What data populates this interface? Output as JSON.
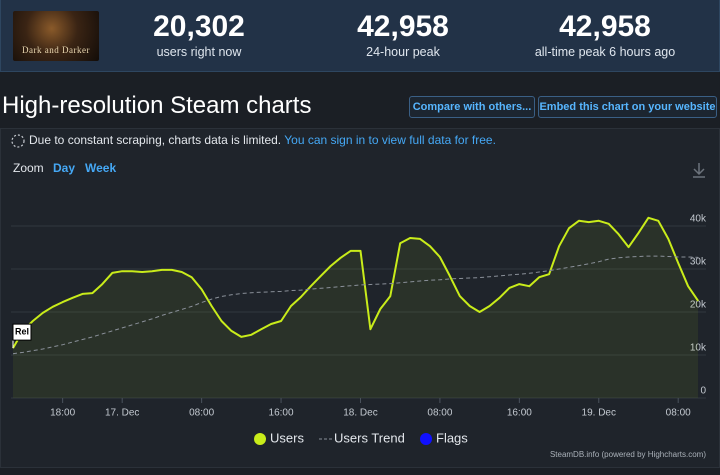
{
  "header": {
    "game_logo": "Dark and Darker",
    "stats": [
      {
        "value": "20,302",
        "label": "users right now"
      },
      {
        "value": "42,958",
        "label": "24-hour peak"
      },
      {
        "value": "42,958",
        "label": "all-time peak 6 hours ago"
      }
    ]
  },
  "title": "High-resolution Steam charts",
  "buttons": [
    "Compare with others...",
    "Embed this chart on your website"
  ],
  "notice": {
    "text": "Due to constant scraping, charts data is limited.",
    "link": "You can sign in to view full data for free."
  },
  "zoom": {
    "label": "Zoom",
    "options": [
      "Day",
      "Week"
    ]
  },
  "chart_data": {
    "type": "line",
    "x": [
      13,
      14,
      15,
      16,
      17,
      18,
      19,
      20,
      21,
      22,
      23,
      24,
      25,
      26,
      27,
      28,
      29,
      30,
      31,
      32,
      33,
      34,
      35,
      36,
      37,
      38,
      39,
      40,
      41,
      42,
      43,
      44,
      45,
      46,
      47,
      48,
      49,
      50,
      51,
      52,
      53,
      54,
      55,
      56,
      57,
      58,
      59,
      60,
      61,
      62,
      63,
      64,
      65,
      66,
      67,
      68,
      69,
      70,
      71,
      72,
      73,
      74,
      75,
      76,
      77,
      78,
      79,
      80,
      81,
      82
    ],
    "series": [
      {
        "name": "Users",
        "color": "#c9ec1a",
        "dashed": false,
        "values": [
          11600,
          15600,
          17900,
          19800,
          21200,
          22300,
          23300,
          24200,
          24400,
          26500,
          29100,
          29500,
          29500,
          29300,
          29500,
          29800,
          29800,
          29300,
          28100,
          25300,
          21400,
          17900,
          15600,
          14200,
          14700,
          16000,
          17200,
          17900,
          21400,
          23500,
          26000,
          28400,
          30700,
          32600,
          34200,
          34200,
          16000,
          20700,
          23700,
          36000,
          37200,
          37000,
          35300,
          32800,
          28400,
          23700,
          21400,
          20000,
          21400,
          23300,
          25600,
          26500,
          26000,
          28100,
          28800,
          35300,
          39500,
          41200,
          40900,
          41200,
          40500,
          38100,
          35100,
          38400,
          41900,
          41200,
          37000,
          31400,
          26000,
          22600
        ]
      },
      {
        "name": "Users Trend",
        "color": "#8a9099",
        "dashed": true,
        "values": [
          10300,
          10600,
          11000,
          11400,
          11900,
          12400,
          13000,
          13600,
          14200,
          14900,
          15600,
          16300,
          17000,
          17700,
          18400,
          19200,
          19900,
          20600,
          21300,
          22200,
          23000,
          23600,
          24000,
          24300,
          24500,
          24600,
          24700,
          24800,
          25000,
          25100,
          25300,
          25500,
          25700,
          25900,
          26100,
          26300,
          26400,
          26500,
          26600,
          26800,
          27000,
          27200,
          27400,
          27500,
          27700,
          27800,
          27900,
          28000,
          28200,
          28400,
          28600,
          28800,
          29000,
          29300,
          29600,
          30000,
          30400,
          30800,
          31200,
          31700,
          32300,
          32600,
          32800,
          32900,
          33000,
          33000,
          32900,
          32800,
          32800,
          32700
        ]
      }
    ],
    "flags": {
      "name": "Flags",
      "color": "#1010ff"
    },
    "annotations": [
      {
        "text": "Rel",
        "x": 13
      }
    ],
    "xlim": [
      12.8,
      82.8
    ],
    "xticks": [
      {
        "value": 18,
        "label": "18:00"
      },
      {
        "value": 24,
        "label": "17. Dec"
      },
      {
        "value": 32,
        "label": "08:00"
      },
      {
        "value": 40,
        "label": "16:00"
      },
      {
        "value": 48,
        "label": "18. Dec"
      },
      {
        "value": 56,
        "label": "08:00"
      },
      {
        "value": 64,
        "label": "16:00"
      },
      {
        "value": 72,
        "label": "19. Dec"
      },
      {
        "value": 80,
        "label": "08:00"
      }
    ],
    "ylim": [
      0,
      49000
    ],
    "yticks": [
      0,
      {
        "value": 10000,
        "label": "10k"
      },
      {
        "value": 20000,
        "label": "20k"
      },
      {
        "value": 30000,
        "label": "30k"
      },
      {
        "value": 40000,
        "label": "40k"
      }
    ],
    "grid": true,
    "credits": "SteamDB.info (powered by Highcharts.com)"
  }
}
